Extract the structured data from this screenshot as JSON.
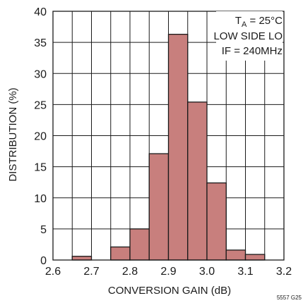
{
  "chart_data": {
    "type": "bar",
    "xlabel": "CONVERSION GAIN (dB)",
    "ylabel": "DISTRIBUTION (%)",
    "xlim": [
      2.6,
      3.2
    ],
    "ylim": [
      0,
      40
    ],
    "x_ticks": [
      "2.6",
      "2.7",
      "2.8",
      "2.9",
      "3.0",
      "3.1",
      "3.2"
    ],
    "y_ticks": [
      "0",
      "5",
      "10",
      "15",
      "20",
      "25",
      "30",
      "35",
      "40"
    ],
    "grid": true,
    "bin_width": 0.05,
    "bins": [
      {
        "start": 2.6,
        "value": 0
      },
      {
        "start": 2.65,
        "value": 0.6
      },
      {
        "start": 2.7,
        "value": 0
      },
      {
        "start": 2.75,
        "value": 2.1
      },
      {
        "start": 2.8,
        "value": 5.0
      },
      {
        "start": 2.85,
        "value": 17.1
      },
      {
        "start": 2.9,
        "value": 36.3
      },
      {
        "start": 2.95,
        "value": 25.4
      },
      {
        "start": 3.0,
        "value": 12.4
      },
      {
        "start": 3.05,
        "value": 1.6
      },
      {
        "start": 3.1,
        "value": 0.9
      },
      {
        "start": 3.15,
        "value": 0
      }
    ],
    "bar_color": "#c87f7d",
    "annotation": {
      "line1_prefix": "T",
      "line1_sub": "A",
      "line1_suffix": " = 25°C",
      "line2": "LOW SIDE LO",
      "line3": "IF = 240MHz"
    },
    "figure_id": "5557 G25"
  }
}
